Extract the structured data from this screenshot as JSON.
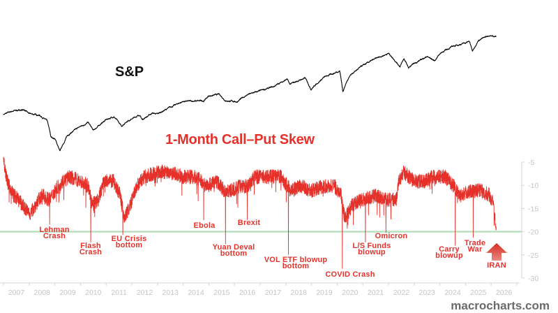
{
  "chart_data": [
    {
      "type": "line",
      "label": "S&P",
      "y_scale": "log",
      "x_unit": "year",
      "series": [
        {
          "color": "#000000",
          "points": [
            [
              2007.0,
              1420
            ],
            [
              2007.4,
              1530
            ],
            [
              2007.8,
              1560
            ],
            [
              2008.0,
              1440
            ],
            [
              2008.4,
              1400
            ],
            [
              2008.7,
              1250
            ],
            [
              2008.85,
              900
            ],
            [
              2009.0,
              880
            ],
            [
              2009.2,
              680
            ],
            [
              2009.5,
              940
            ],
            [
              2010.0,
              1120
            ],
            [
              2010.3,
              1210
            ],
            [
              2010.5,
              1030
            ],
            [
              2011.0,
              1280
            ],
            [
              2011.3,
              1360
            ],
            [
              2011.6,
              1120
            ],
            [
              2011.8,
              1240
            ],
            [
              2012.0,
              1300
            ],
            [
              2012.3,
              1410
            ],
            [
              2012.4,
              1280
            ],
            [
              2012.8,
              1460
            ],
            [
              2013.0,
              1430
            ],
            [
              2013.5,
              1640
            ],
            [
              2014.0,
              1840
            ],
            [
              2014.8,
              1860
            ],
            [
              2015.0,
              2050
            ],
            [
              2015.4,
              2120
            ],
            [
              2015.65,
              1870
            ],
            [
              2016.1,
              1830
            ],
            [
              2016.5,
              2100
            ],
            [
              2017.0,
              2270
            ],
            [
              2017.5,
              2450
            ],
            [
              2018.05,
              2870
            ],
            [
              2018.15,
              2580
            ],
            [
              2018.75,
              2930
            ],
            [
              2018.98,
              2350
            ],
            [
              2019.5,
              2980
            ],
            [
              2020.1,
              3380
            ],
            [
              2020.22,
              2240
            ],
            [
              2020.5,
              3100
            ],
            [
              2021.0,
              3750
            ],
            [
              2021.5,
              4300
            ],
            [
              2022.0,
              4790
            ],
            [
              2022.45,
              3670
            ],
            [
              2022.6,
              4300
            ],
            [
              2022.78,
              3580
            ],
            [
              2023.0,
              3900
            ],
            [
              2023.5,
              4500
            ],
            [
              2023.8,
              4120
            ],
            [
              2024.0,
              4770
            ],
            [
              2024.5,
              5500
            ],
            [
              2025.0,
              5900
            ],
            [
              2025.15,
              6100
            ],
            [
              2025.27,
              4980
            ],
            [
              2025.5,
              6200
            ],
            [
              2025.9,
              6800
            ],
            [
              2026.2,
              6700
            ]
          ]
        }
      ]
    },
    {
      "type": "line",
      "title": "1-Month Call–Put Skew",
      "x_unit": "year",
      "xlim": [
        2007,
        2027
      ],
      "ylim": [
        -30,
        -5
      ],
      "y_ticks": [
        "-5",
        "-10",
        "-15",
        "-20",
        "-25",
        "-30"
      ],
      "x_ticks": [
        "2007",
        "2008",
        "2009",
        "2010",
        "2011",
        "2012",
        "2013",
        "2014",
        "2015",
        "2016",
        "2017",
        "2018",
        "2019",
        "2020",
        "2021",
        "2022",
        "2023",
        "2024",
        "2025",
        "2026"
      ],
      "reference_line": {
        "value": -20,
        "color": "#b9e0bf"
      },
      "series": [
        {
          "color": "#e5312a",
          "points": [
            [
              2007.0,
              -4
            ],
            [
              2007.15,
              -9
            ],
            [
              2007.4,
              -12
            ],
            [
              2007.6,
              -13
            ],
            [
              2007.85,
              -15
            ],
            [
              2008.05,
              -16
            ],
            [
              2008.25,
              -14
            ],
            [
              2008.5,
              -12
            ],
            [
              2008.8,
              -13
            ],
            [
              2009.0,
              -11
            ],
            [
              2009.3,
              -9
            ],
            [
              2009.6,
              -8
            ],
            [
              2010.0,
              -9
            ],
            [
              2010.3,
              -10
            ],
            [
              2010.45,
              -14
            ],
            [
              2010.7,
              -13
            ],
            [
              2010.9,
              -9
            ],
            [
              2011.3,
              -9
            ],
            [
              2011.55,
              -12
            ],
            [
              2011.7,
              -17
            ],
            [
              2011.95,
              -14
            ],
            [
              2012.2,
              -10
            ],
            [
              2012.5,
              -8
            ],
            [
              2013.0,
              -7
            ],
            [
              2013.5,
              -7
            ],
            [
              2014.0,
              -8
            ],
            [
              2014.5,
              -8
            ],
            [
              2014.9,
              -10
            ],
            [
              2015.3,
              -9
            ],
            [
              2015.6,
              -11
            ],
            [
              2015.9,
              -11
            ],
            [
              2016.2,
              -10
            ],
            [
              2016.5,
              -10
            ],
            [
              2016.8,
              -8
            ],
            [
              2017.2,
              -8
            ],
            [
              2017.8,
              -8
            ],
            [
              2018.2,
              -11
            ],
            [
              2018.6,
              -10
            ],
            [
              2019.0,
              -11
            ],
            [
              2019.5,
              -10
            ],
            [
              2019.9,
              -10
            ],
            [
              2020.15,
              -12
            ],
            [
              2020.3,
              -17
            ],
            [
              2020.6,
              -14
            ],
            [
              2021.0,
              -13
            ],
            [
              2021.5,
              -12
            ],
            [
              2021.9,
              -13
            ],
            [
              2022.3,
              -13
            ],
            [
              2022.4,
              -9
            ],
            [
              2022.6,
              -7
            ],
            [
              2023.0,
              -9
            ],
            [
              2023.4,
              -9
            ],
            [
              2023.7,
              -8
            ],
            [
              2024.2,
              -8
            ],
            [
              2024.55,
              -10
            ],
            [
              2024.8,
              -12
            ],
            [
              2025.2,
              -11
            ],
            [
              2025.6,
              -11
            ],
            [
              2025.95,
              -12
            ],
            [
              2026.1,
              -14
            ],
            [
              2026.2,
              -19
            ]
          ],
          "spikes": [
            [
              2008.8,
              -18.5
            ],
            [
              2010.4,
              -22.3
            ],
            [
              2011.65,
              -20.7
            ],
            [
              2014.8,
              -17.5
            ],
            [
              2015.65,
              -22.7
            ],
            [
              2016.5,
              -17.5
            ],
            [
              2018.1,
              -25
            ],
            [
              2020.2,
              -28
            ],
            [
              2021.1,
              -22.3
            ],
            [
              2021.9,
              -20.2
            ],
            [
              2024.6,
              -23
            ],
            [
              2025.3,
              -21.3
            ],
            [
              2026.2,
              -22
            ]
          ]
        }
      ],
      "annotations": [
        {
          "lines": [
            "Lehman",
            "Crash"
          ]
        },
        {
          "lines": [
            "Flash",
            "Crash"
          ]
        },
        {
          "lines": [
            "EU Crisis",
            "bottom"
          ]
        },
        {
          "lines": [
            "Ebola"
          ]
        },
        {
          "lines": [
            "Yuan Deval",
            "bottom"
          ]
        },
        {
          "lines": [
            "Brexit"
          ]
        },
        {
          "lines": [
            "VOL ETF blowup",
            "bottom"
          ]
        },
        {
          "lines": [
            "COVID Crash"
          ]
        },
        {
          "lines": [
            "L/S Funds",
            "blowup"
          ]
        },
        {
          "lines": [
            "Omicron"
          ]
        },
        {
          "lines": [
            "Carry",
            "blowup"
          ]
        },
        {
          "lines": [
            "Trade",
            "War"
          ]
        },
        {
          "lines": [
            "IRAN"
          ],
          "icon": "up-arrow-icon"
        }
      ]
    }
  ],
  "labels": {
    "sp": "S&P",
    "skew_title": "1-Month Call–Put Skew",
    "watermark": "macrocharts.com"
  }
}
